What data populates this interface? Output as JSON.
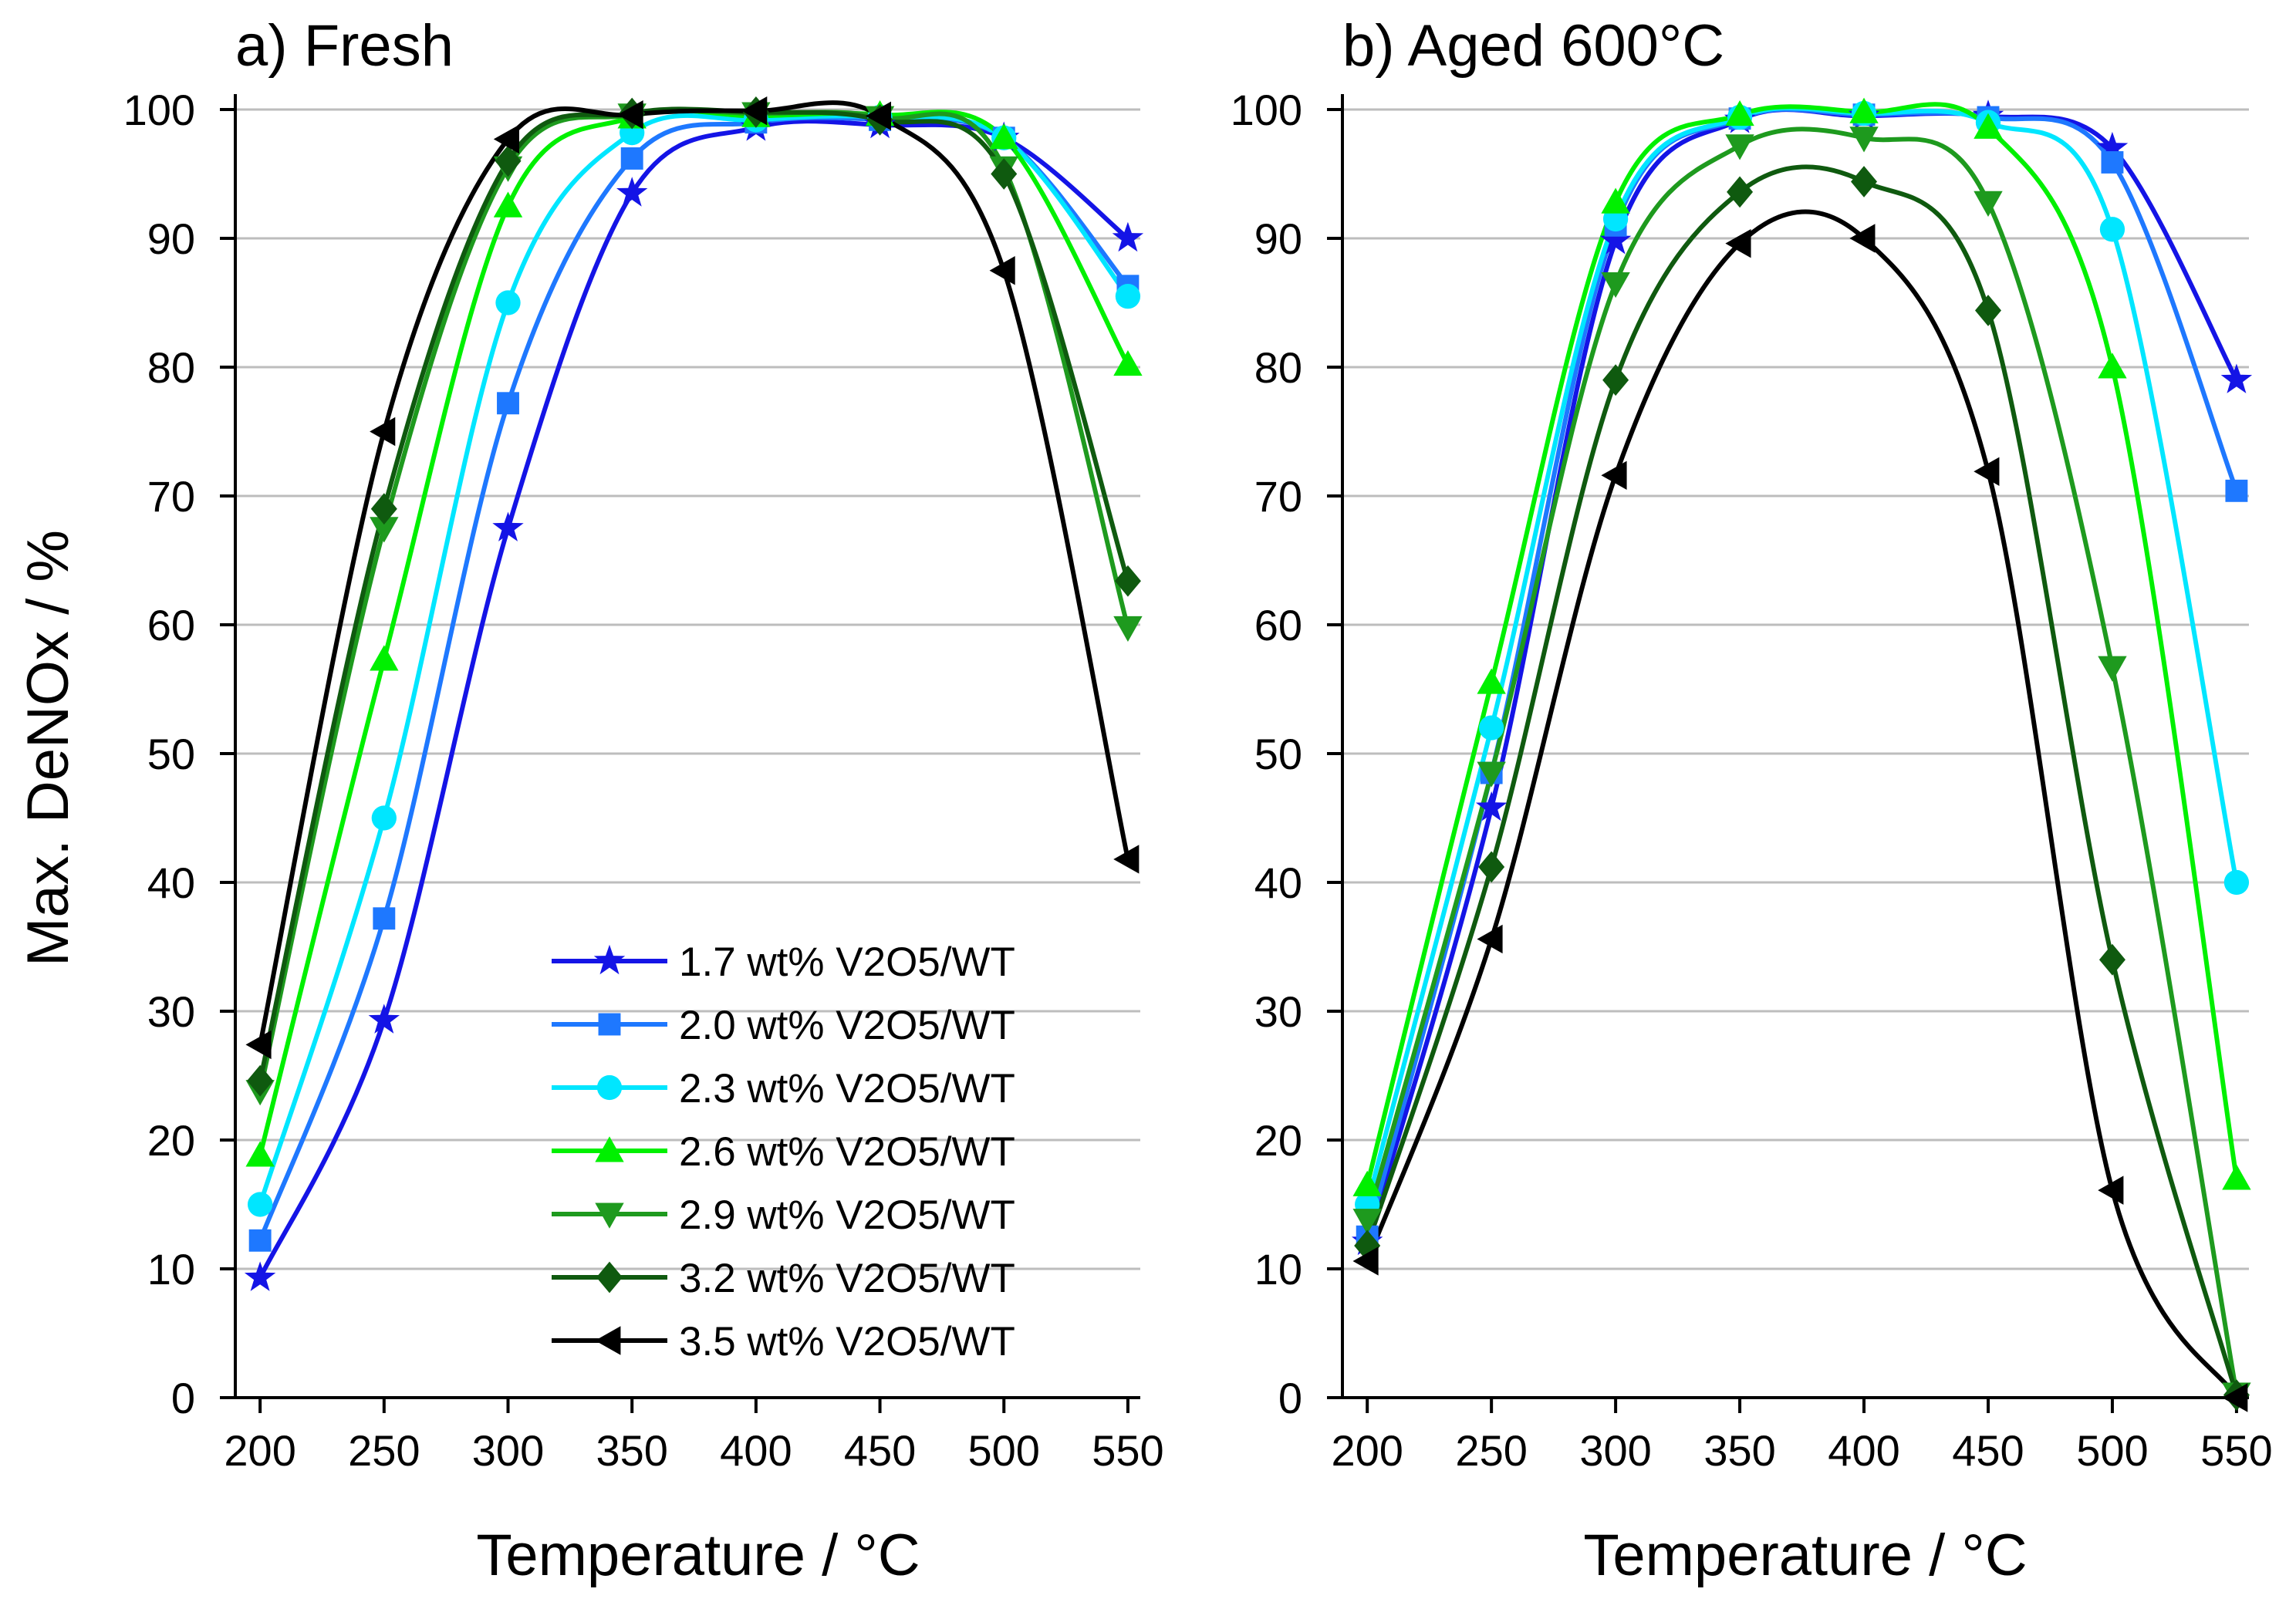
{
  "chart_data": [
    {
      "type": "line",
      "title": "a) Fresh",
      "xlabel": "Temperature / °C",
      "ylabel": "Max. DeNOx / %",
      "xlim": [
        190,
        555
      ],
      "ylim": [
        0,
        100
      ],
      "xticks": [
        200,
        250,
        300,
        350,
        400,
        450,
        500,
        550
      ],
      "yticks": [
        0,
        10,
        20,
        30,
        40,
        50,
        60,
        70,
        80,
        90,
        100
      ],
      "grid": true,
      "legend": "bottom-center",
      "x": [
        200,
        250,
        300,
        350,
        400,
        450,
        500,
        550
      ],
      "series": [
        {
          "name": "1.7 wt% V2O5/WT",
          "color": "#1414e6",
          "marker": "star",
          "values": [
            9.3,
            29.3,
            67.5,
            93.5,
            98.6,
            98.8,
            97.8,
            90
          ]
        },
        {
          "name": "2.0 wt% V2O5/WT",
          "color": "#1e78ff",
          "marker": "square",
          "values": [
            12.2,
            37.2,
            77.2,
            96.2,
            99,
            99.2,
            97.8,
            86.3
          ]
        },
        {
          "name": "2.3 wt% V2O5/WT",
          "color": "#00e6ff",
          "marker": "circle",
          "values": [
            15,
            45,
            85,
            98.2,
            99.2,
            99.4,
            97.8,
            85.5
          ]
        },
        {
          "name": "2.6 wt% V2O5/WT",
          "color": "#00f000",
          "marker": "triangle-up",
          "values": [
            18.8,
            57.3,
            92.5,
            99.4,
            99.5,
            99.6,
            97.8,
            80.2
          ]
        },
        {
          "name": "2.9 wt% V2O5/WT",
          "color": "#1e9a1e",
          "marker": "triangle-down",
          "values": [
            23.8,
            67.5,
            95.5,
            99.6,
            99.7,
            99.4,
            95.5,
            59.8
          ]
        },
        {
          "name": "3.2 wt% V2O5/WT",
          "color": "#0f5a0f",
          "marker": "diamond",
          "values": [
            24.6,
            69,
            96,
            99.7,
            99.8,
            99.2,
            95,
            63.4
          ]
        },
        {
          "name": "3.5 wt% V2O5/WT",
          "color": "#000000",
          "marker": "triangle-left",
          "values": [
            27.4,
            75,
            97.7,
            99.6,
            99.9,
            99.5,
            87.5,
            41.8
          ]
        }
      ]
    },
    {
      "type": "line",
      "title": "b) Aged 600°C",
      "xlabel": "Temperature / °C",
      "ylabel": "",
      "xlim": [
        190,
        555
      ],
      "ylim": [
        0,
        100
      ],
      "xticks": [
        200,
        250,
        300,
        350,
        400,
        450,
        500,
        550
      ],
      "yticks": [
        0,
        10,
        20,
        30,
        40,
        50,
        60,
        70,
        80,
        90,
        100
      ],
      "grid": true,
      "legend": "none",
      "x": [
        200,
        250,
        300,
        350,
        400,
        450,
        500,
        550
      ],
      "series": [
        {
          "name": "1.7 wt% V2O5/WT",
          "color": "#1414e6",
          "marker": "star",
          "values": [
            12.1,
            45.8,
            89.8,
            99.2,
            99.5,
            99.5,
            97,
            79
          ]
        },
        {
          "name": "2.0 wt% V2O5/WT",
          "color": "#1e78ff",
          "marker": "square",
          "values": [
            12.5,
            48.5,
            91,
            99.3,
            99.6,
            99.4,
            95.9,
            70.4
          ]
        },
        {
          "name": "2.3 wt% V2O5/WT",
          "color": "#00e6ff",
          "marker": "circle",
          "values": [
            15,
            52,
            91.5,
            99.4,
            99.7,
            99,
            90.7,
            40
          ]
        },
        {
          "name": "2.6 wt% V2O5/WT",
          "color": "#00f000",
          "marker": "triangle-up",
          "values": [
            16.5,
            55.5,
            92.8,
            99.6,
            99.8,
            98.6,
            80,
            17
          ]
        },
        {
          "name": "2.9 wt% V2O5/WT",
          "color": "#1e9a1e",
          "marker": "triangle-down",
          "values": [
            13.8,
            48.5,
            86.5,
            97.2,
            97.8,
            92.8,
            56.7,
            0.3
          ]
        },
        {
          "name": "3.2 wt% V2O5/WT",
          "color": "#0f5a0f",
          "marker": "diamond",
          "values": [
            11.8,
            41.2,
            79,
            93.6,
            94.4,
            84.4,
            34,
            0.2
          ]
        },
        {
          "name": "3.5 wt% V2O5/WT",
          "color": "#000000",
          "marker": "triangle-left",
          "values": [
            10.6,
            35.6,
            71.6,
            89.6,
            90,
            71.9,
            16.1,
            0
          ]
        }
      ]
    }
  ]
}
